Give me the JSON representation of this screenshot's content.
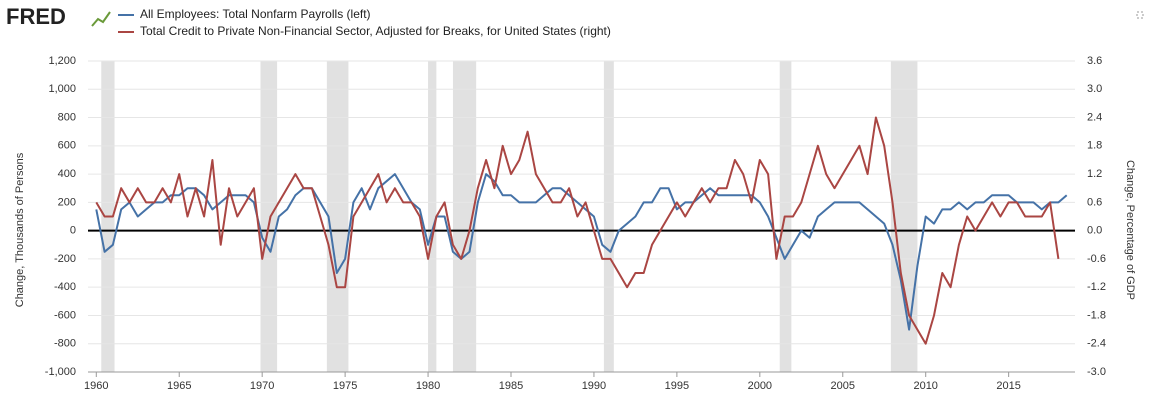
{
  "chart_data": {
    "type": "line",
    "logo": "FRED",
    "ylabel": "Change, Thousands of Persons",
    "y2label": "Change, Percentage of GDP",
    "xlim": [
      1959.5,
      2019
    ],
    "xticks": [
      1960,
      1965,
      1970,
      1975,
      1980,
      1985,
      1990,
      1995,
      2000,
      2005,
      2010,
      2015
    ],
    "ylim": [
      -1000,
      1200
    ],
    "yticks": [
      {
        "value": -1000,
        "label": "-1,000"
      },
      -800,
      -600,
      -400,
      -200,
      0,
      200,
      400,
      600,
      800,
      {
        "value": 1000,
        "label": "1,000"
      },
      {
        "value": 1200,
        "label": "1,200"
      }
    ],
    "y2lim": [
      -3.0,
      3.6
    ],
    "y2ticks": [
      {
        "value": -3.0,
        "label": "-3.0"
      },
      -2.4,
      -1.8,
      -1.2,
      -0.6,
      {
        "value": 0.0,
        "label": "0.0"
      },
      0.6,
      1.2,
      1.8,
      2.4,
      {
        "value": 3.0,
        "label": "3.0"
      },
      3.6
    ],
    "grid": true,
    "recessions": [
      [
        1960.3,
        1961.1
      ],
      [
        1969.9,
        1970.9
      ],
      [
        1973.9,
        1975.2
      ],
      [
        1980.0,
        1980.5
      ],
      [
        1981.5,
        1982.9
      ],
      [
        1990.6,
        1991.2
      ],
      [
        2001.2,
        2001.9
      ],
      [
        2007.9,
        2009.5
      ]
    ],
    "x": [
      1960,
      1960.5,
      1961,
      1961.5,
      1962,
      1962.5,
      1963,
      1963.5,
      1964,
      1964.5,
      1965,
      1965.5,
      1966,
      1966.5,
      1967,
      1967.5,
      1968,
      1968.5,
      1969,
      1969.5,
      1970,
      1970.5,
      1971,
      1971.5,
      1972,
      1972.5,
      1973,
      1973.5,
      1974,
      1974.5,
      1975,
      1975.5,
      1976,
      1976.5,
      1977,
      1977.5,
      1978,
      1978.5,
      1979,
      1979.5,
      1980,
      1980.5,
      1981,
      1981.5,
      1982,
      1982.5,
      1983,
      1983.5,
      1984,
      1984.5,
      1985,
      1985.5,
      1986,
      1986.5,
      1987,
      1987.5,
      1988,
      1988.5,
      1989,
      1989.5,
      1990,
      1990.5,
      1991,
      1991.5,
      1992,
      1992.5,
      1993,
      1993.5,
      1994,
      1994.5,
      1995,
      1995.5,
      1996,
      1996.5,
      1997,
      1997.5,
      1998,
      1998.5,
      1999,
      1999.5,
      2000,
      2000.5,
      2001,
      2001.5,
      2002,
      2002.5,
      2003,
      2003.5,
      2004,
      2004.5,
      2005,
      2005.5,
      2006,
      2006.5,
      2007,
      2007.5,
      2008,
      2008.5,
      2009,
      2009.5,
      2010,
      2010.5,
      2011,
      2011.5,
      2012,
      2012.5,
      2013,
      2013.5,
      2014,
      2014.5,
      2015,
      2015.5,
      2016,
      2016.5,
      2017,
      2017.5,
      2018,
      2018.5
    ],
    "series": [
      {
        "name": "All Employees: Total Nonfarm Payrolls (left)",
        "color": "#4572a7",
        "axis": "y",
        "values": [
          150,
          -150,
          -100,
          150,
          200,
          100,
          150,
          200,
          200,
          250,
          250,
          300,
          300,
          250,
          150,
          200,
          250,
          250,
          250,
          200,
          -50,
          -150,
          100,
          150,
          250,
          300,
          300,
          200,
          100,
          -300,
          -200,
          200,
          300,
          150,
          300,
          350,
          400,
          300,
          200,
          150,
          -100,
          100,
          100,
          -150,
          -200,
          -150,
          200,
          400,
          350,
          250,
          250,
          200,
          200,
          200,
          250,
          300,
          300,
          250,
          200,
          150,
          100,
          -100,
          -150,
          0,
          50,
          100,
          200,
          200,
          300,
          300,
          150,
          200,
          200,
          250,
          300,
          250,
          250,
          250,
          250,
          250,
          200,
          100,
          -50,
          -200,
          -100,
          0,
          -50,
          100,
          150,
          200,
          200,
          200,
          200,
          150,
          100,
          50,
          -100,
          -350,
          -700,
          -250,
          100,
          50,
          150,
          150,
          200,
          150,
          200,
          200,
          250,
          250,
          250,
          200,
          200,
          200,
          150,
          200,
          200,
          250
        ]
      },
      {
        "name": "Total Credit to Private Non-Financial Sector, Adjusted for Breaks, for United States (right)",
        "color": "#aa4643",
        "axis": "y2",
        "values": [
          0.6,
          0.3,
          0.3,
          0.9,
          0.6,
          0.9,
          0.6,
          0.6,
          0.9,
          0.6,
          1.2,
          0.3,
          0.9,
          0.3,
          1.5,
          -0.3,
          0.9,
          0.3,
          0.6,
          0.9,
          -0.6,
          0.3,
          0.6,
          0.9,
          1.2,
          0.9,
          0.9,
          0.3,
          -0.3,
          -1.2,
          -1.2,
          0.3,
          0.6,
          0.9,
          1.2,
          0.6,
          0.9,
          0.6,
          0.6,
          0.3,
          -0.6,
          0.3,
          0.6,
          -0.3,
          -0.6,
          0.0,
          0.9,
          1.5,
          0.9,
          1.8,
          1.2,
          1.5,
          2.1,
          1.2,
          0.9,
          0.6,
          0.6,
          0.9,
          0.3,
          0.6,
          0.0,
          -0.6,
          -0.6,
          -0.9,
          -1.2,
          -0.9,
          -0.9,
          -0.3,
          0.0,
          0.3,
          0.6,
          0.3,
          0.6,
          0.9,
          0.6,
          0.9,
          0.9,
          1.5,
          1.2,
          0.6,
          1.5,
          1.2,
          -0.6,
          0.3,
          0.3,
          0.6,
          1.2,
          1.8,
          1.2,
          0.9,
          1.2,
          1.5,
          1.8,
          1.2,
          2.4,
          1.8,
          0.6,
          -0.9,
          -1.8,
          -2.1,
          -2.4,
          -1.8,
          -0.9,
          -1.2,
          -0.3,
          0.3,
          0.0,
          0.3,
          0.6,
          0.3,
          0.6,
          0.6,
          0.3,
          0.3,
          0.3,
          0.6,
          -0.6,
          null
        ]
      }
    ]
  }
}
